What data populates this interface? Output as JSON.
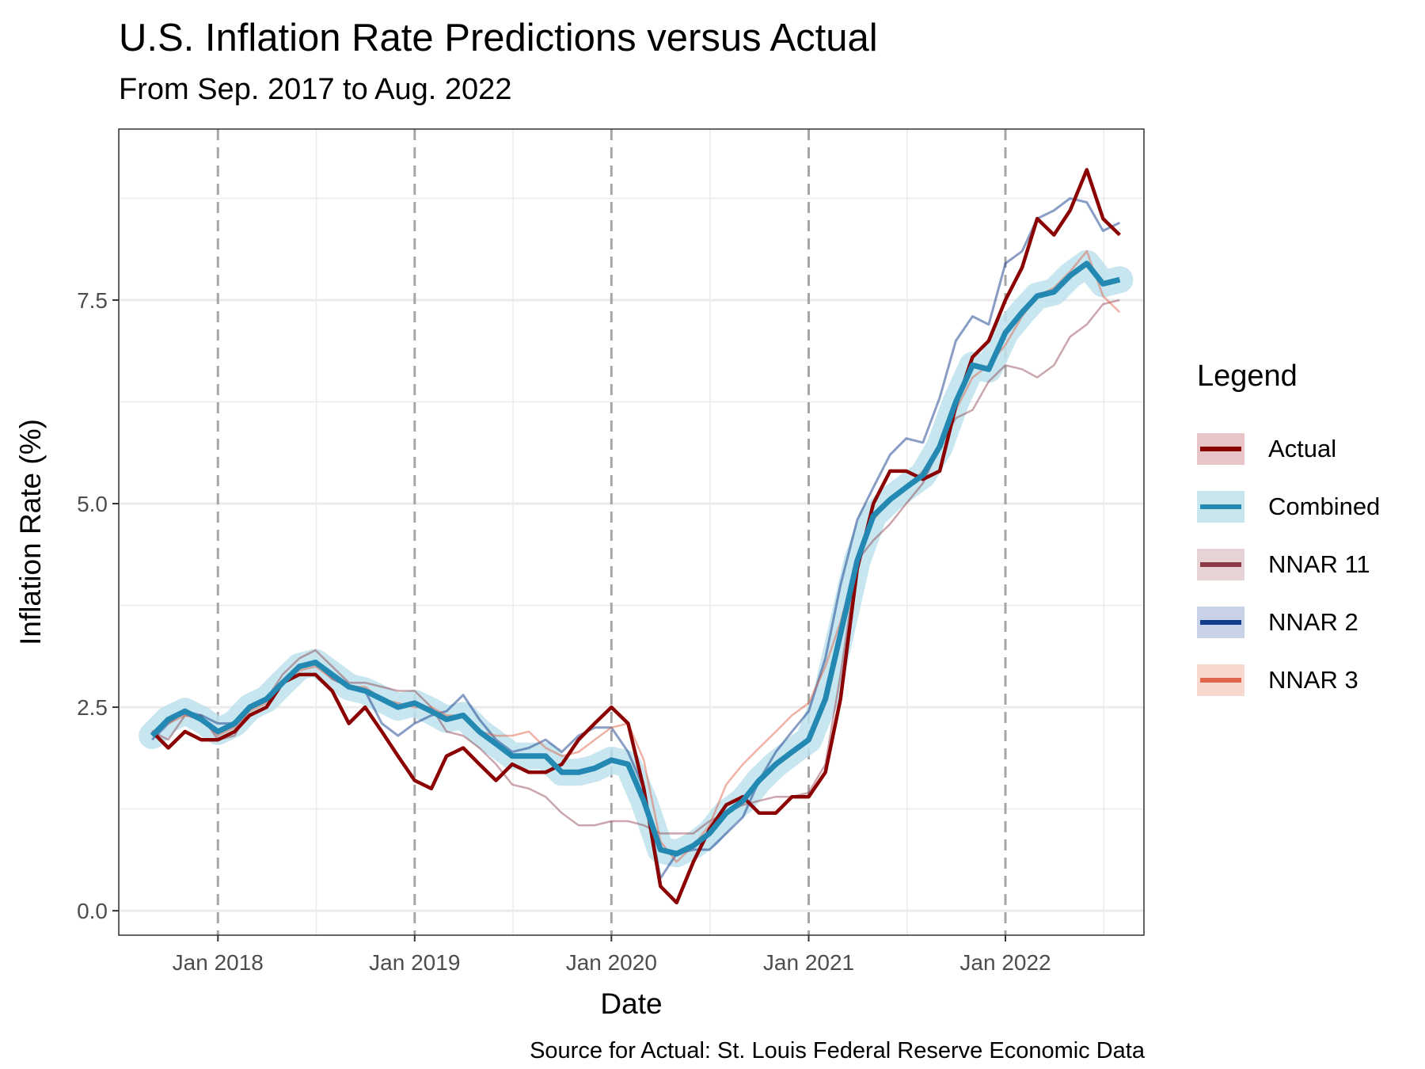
{
  "title": "U.S. Inflation Rate Predictions versus Actual",
  "subtitle": "From Sep. 2017 to Aug. 2022",
  "caption": "Source for Actual: St. Louis Federal Reserve Economic Data",
  "legend": {
    "title": "Legend",
    "items": [
      {
        "label": "Actual",
        "color": "#8b0000",
        "band": "#e8c4c6"
      },
      {
        "label": "Combined",
        "color": "#2389b3",
        "band": "#c9e6ee"
      },
      {
        "label": "NNAR 11",
        "color": "#8b3a46",
        "band": "#e6d3d6"
      },
      {
        "label": "NNAR 2",
        "color": "#133c8b",
        "band": "#c9d3e8"
      },
      {
        "label": "NNAR 3",
        "color": "#e0664c",
        "band": "#f7d8cf"
      }
    ]
  },
  "chart_data": {
    "type": "line",
    "title": "U.S. Inflation Rate Predictions versus Actual",
    "subtitle": "From Sep. 2017 to Aug. 2022",
    "xlabel": "Date",
    "ylabel": "Inflation Rate (%)",
    "x_type": "date",
    "xlim": [
      "2017-07-01",
      "2022-09-15"
    ],
    "ylim": [
      -0.3,
      9.6
    ],
    "x_ticks": [
      "2018-01-01",
      "2019-01-01",
      "2020-01-01",
      "2021-01-01",
      "2022-01-01"
    ],
    "x_tick_labels": [
      "Jan 2018",
      "Jan 2019",
      "Jan 2020",
      "Jan 2021",
      "Jan 2022"
    ],
    "y_ticks": [
      0,
      2.5,
      5,
      7.5
    ],
    "y_tick_labels": [
      "0.0",
      "2.5",
      "5.0",
      "7.5"
    ],
    "vertical_dashed_lines": [
      "2018-01-01",
      "2019-01-01",
      "2020-01-01",
      "2021-01-01",
      "2022-01-01"
    ],
    "grid": true,
    "legend_position": "right",
    "x": [
      "2017-09",
      "2017-10",
      "2017-11",
      "2017-12",
      "2018-01",
      "2018-02",
      "2018-03",
      "2018-04",
      "2018-05",
      "2018-06",
      "2018-07",
      "2018-08",
      "2018-09",
      "2018-10",
      "2018-11",
      "2018-12",
      "2019-01",
      "2019-02",
      "2019-03",
      "2019-04",
      "2019-05",
      "2019-06",
      "2019-07",
      "2019-08",
      "2019-09",
      "2019-10",
      "2019-11",
      "2019-12",
      "2020-01",
      "2020-02",
      "2020-03",
      "2020-04",
      "2020-05",
      "2020-06",
      "2020-07",
      "2020-08",
      "2020-09",
      "2020-10",
      "2020-11",
      "2020-12",
      "2021-01",
      "2021-02",
      "2021-03",
      "2021-04",
      "2021-05",
      "2021-06",
      "2021-07",
      "2021-08",
      "2021-09",
      "2021-10",
      "2021-11",
      "2021-12",
      "2022-01",
      "2022-02",
      "2022-03",
      "2022-04",
      "2022-05",
      "2022-06",
      "2022-07",
      "2022-08"
    ],
    "series": [
      {
        "name": "Actual",
        "color": "#8b0000",
        "values": [
          2.2,
          2.0,
          2.2,
          2.1,
          2.1,
          2.2,
          2.4,
          2.5,
          2.8,
          2.9,
          2.9,
          2.7,
          2.3,
          2.5,
          2.2,
          1.9,
          1.6,
          1.5,
          1.9,
          2.0,
          1.8,
          1.6,
          1.8,
          1.7,
          1.7,
          1.8,
          2.1,
          2.3,
          2.5,
          2.3,
          1.5,
          0.3,
          0.1,
          0.6,
          1.0,
          1.3,
          1.4,
          1.2,
          1.2,
          1.4,
          1.4,
          1.7,
          2.6,
          4.2,
          5.0,
          5.4,
          5.4,
          5.3,
          5.4,
          6.2,
          6.8,
          7.0,
          7.5,
          7.9,
          8.5,
          8.3,
          8.6,
          9.1,
          8.5,
          8.3
        ]
      },
      {
        "name": "Combined",
        "color": "#2389b3",
        "values": [
          2.15,
          2.35,
          2.45,
          2.35,
          2.2,
          2.3,
          2.5,
          2.6,
          2.8,
          3.0,
          3.05,
          2.9,
          2.75,
          2.7,
          2.6,
          2.5,
          2.55,
          2.45,
          2.35,
          2.4,
          2.2,
          2.05,
          1.9,
          1.9,
          1.9,
          1.7,
          1.7,
          1.75,
          1.85,
          1.8,
          1.35,
          0.75,
          0.7,
          0.8,
          0.95,
          1.2,
          1.35,
          1.6,
          1.8,
          1.95,
          2.1,
          2.6,
          3.4,
          4.3,
          4.85,
          5.05,
          5.2,
          5.35,
          5.7,
          6.25,
          6.7,
          6.65,
          7.1,
          7.35,
          7.55,
          7.6,
          7.8,
          7.95,
          7.7,
          7.75
        ]
      },
      {
        "name": "NNAR 11",
        "color": "#8b3a46",
        "values": [
          2.2,
          2.1,
          2.4,
          2.4,
          2.1,
          2.15,
          2.5,
          2.6,
          2.9,
          3.1,
          3.2,
          3.0,
          2.8,
          2.8,
          2.75,
          2.7,
          2.7,
          2.5,
          2.2,
          2.15,
          2.0,
          1.8,
          1.55,
          1.5,
          1.4,
          1.2,
          1.05,
          1.05,
          1.1,
          1.1,
          1.05,
          0.95,
          0.95,
          0.95,
          1.1,
          1.2,
          1.3,
          1.35,
          1.4,
          1.4,
          1.45,
          1.8,
          2.9,
          4.3,
          4.55,
          4.75,
          5.0,
          5.25,
          5.7,
          6.05,
          6.15,
          6.5,
          6.7,
          6.65,
          6.55,
          6.7,
          7.05,
          7.2,
          7.45,
          7.5
        ]
      },
      {
        "name": "NNAR 2",
        "color": "#133c8b",
        "values": [
          2.1,
          2.3,
          2.45,
          2.4,
          2.3,
          2.3,
          2.5,
          2.6,
          2.8,
          3.0,
          3.05,
          2.85,
          2.75,
          2.7,
          2.3,
          2.15,
          2.3,
          2.4,
          2.45,
          2.65,
          2.35,
          2.1,
          1.95,
          2.0,
          2.1,
          1.95,
          2.15,
          2.25,
          2.25,
          1.95,
          1.5,
          0.4,
          0.7,
          0.75,
          0.75,
          0.95,
          1.15,
          1.6,
          1.95,
          2.2,
          2.45,
          3.1,
          4.0,
          4.8,
          5.2,
          5.6,
          5.8,
          5.75,
          6.3,
          7.0,
          7.3,
          7.2,
          7.95,
          8.1,
          8.5,
          8.6,
          8.75,
          8.7,
          8.35,
          8.45
        ]
      },
      {
        "name": "NNAR 3",
        "color": "#e0664c",
        "values": [
          2.2,
          2.3,
          2.4,
          2.35,
          2.15,
          2.25,
          2.45,
          2.55,
          2.8,
          2.95,
          3.0,
          2.85,
          2.75,
          2.75,
          2.6,
          2.55,
          2.5,
          2.5,
          2.4,
          2.4,
          2.2,
          2.15,
          2.15,
          2.2,
          2.0,
          1.9,
          1.95,
          2.1,
          2.25,
          2.3,
          1.85,
          0.85,
          0.6,
          0.8,
          1.05,
          1.55,
          1.8,
          2.0,
          2.2,
          2.4,
          2.55,
          3.0,
          3.55,
          4.3,
          4.8,
          5.05,
          5.2,
          5.4,
          5.7,
          6.15,
          6.55,
          6.7,
          6.95,
          7.3,
          7.55,
          7.65,
          7.85,
          8.1,
          7.55,
          7.35
        ]
      }
    ]
  }
}
